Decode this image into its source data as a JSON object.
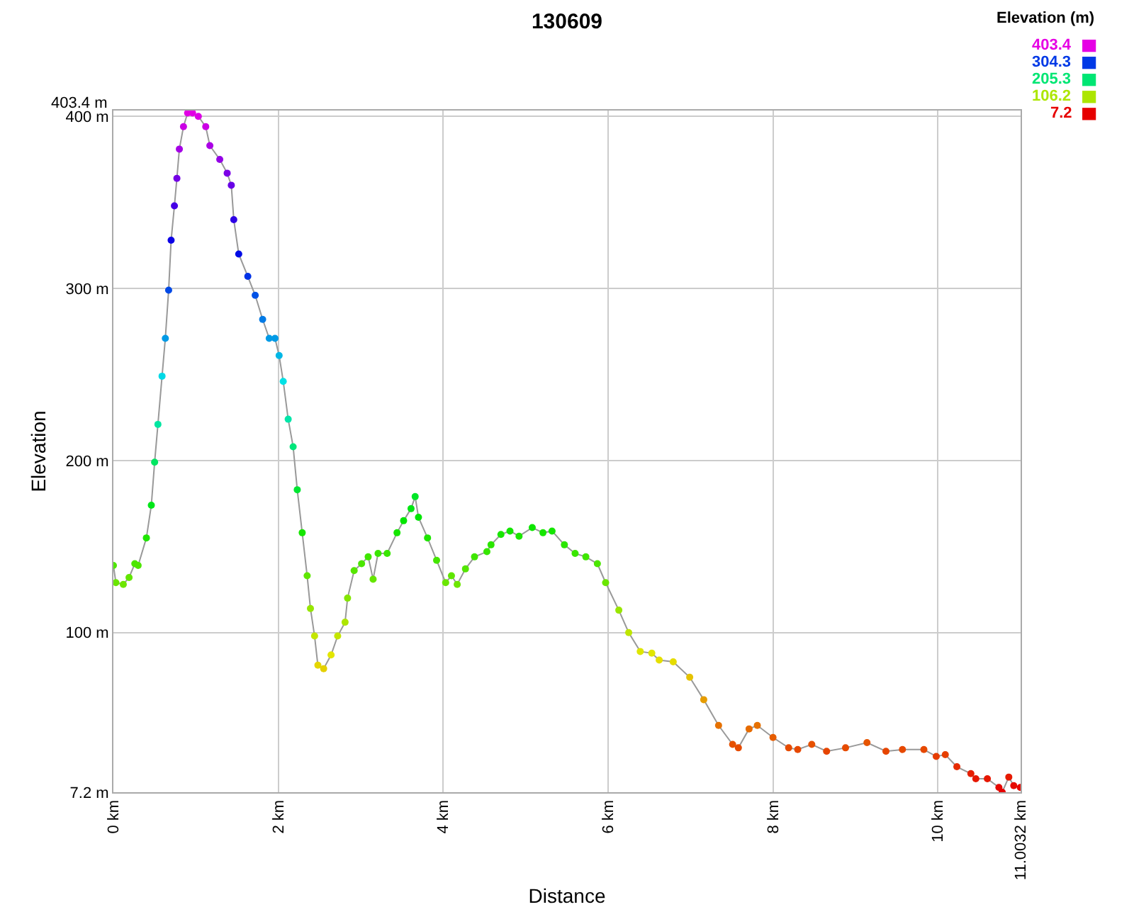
{
  "chart_data": {
    "type": "line",
    "title": "130609",
    "xlabel": "Distance",
    "ylabel": "Elevation",
    "clabel": "Elevation (m)",
    "clim": [
      7.2,
      403.4
    ],
    "cticks": [
      403.4,
      304.3,
      205.3,
      106.2,
      7.2
    ],
    "xlim": [
      0,
      11.0032
    ],
    "ylim": [
      7.2,
      403.4
    ],
    "xticks": [
      {
        "value": 0,
        "label": "0 km"
      },
      {
        "value": 2,
        "label": "2 km"
      },
      {
        "value": 4,
        "label": "4 km"
      },
      {
        "value": 6,
        "label": "6 km"
      },
      {
        "value": 8,
        "label": "8 km"
      },
      {
        "value": 10,
        "label": "10 km"
      },
      {
        "value": 11.0032,
        "label": "11.0032 km"
      }
    ],
    "yticks": [
      {
        "value": 7.2,
        "label": "7.2 m"
      },
      {
        "value": 100,
        "label": "100 m"
      },
      {
        "value": 200,
        "label": "200 m"
      },
      {
        "value": 300,
        "label": "300 m"
      },
      {
        "value": 400,
        "label": "400 m"
      },
      {
        "value": 403.4,
        "label": "403.4 m"
      }
    ],
    "grid": true,
    "marker": "circle",
    "series": [
      {
        "x": [
          0,
          0.03,
          0.12,
          0.19,
          0.26,
          0.3,
          0.4,
          0.46,
          0.5,
          0.54,
          0.59,
          0.63,
          0.67,
          0.7,
          0.74,
          0.77,
          0.8,
          0.85,
          0.9,
          0.96,
          1.03,
          1.12,
          1.17,
          1.29,
          1.38,
          1.43,
          1.46,
          1.52,
          1.63,
          1.72,
          1.81,
          1.89,
          1.96,
          2.01,
          2.06,
          2.12,
          2.18,
          2.23,
          2.29,
          2.35,
          2.39,
          2.44,
          2.48,
          2.55,
          2.64,
          2.72,
          2.81,
          2.84,
          2.92,
          3.01,
          3.09,
          3.15,
          3.21,
          3.32,
          3.44,
          3.52,
          3.61,
          3.66,
          3.7,
          3.81,
          3.92,
          4.03,
          4.1,
          4.17,
          4.27,
          4.38,
          4.53,
          4.58,
          4.7,
          4.81,
          4.92,
          5.08,
          5.21,
          5.32,
          5.47,
          5.6,
          5.73,
          5.87,
          5.97,
          6.13,
          6.25,
          6.39,
          6.53,
          6.62,
          6.79,
          6.99,
          7.16,
          7.34,
          7.51,
          7.58,
          7.71,
          7.81,
          8.0,
          8.19,
          8.3,
          8.47,
          8.65,
          8.88,
          9.14,
          9.37,
          9.57,
          9.83,
          9.98,
          10.09,
          10.23,
          10.4,
          10.46,
          10.6,
          10.74,
          10.78,
          10.86,
          10.92,
          11.0
        ],
        "values": [
          139,
          129,
          128,
          132,
          140,
          139,
          155,
          174,
          199,
          221,
          249,
          271,
          299,
          328,
          348,
          364,
          381,
          394,
          402,
          402,
          400,
          394,
          383,
          375,
          367,
          360,
          340,
          320,
          307,
          296,
          282,
          271,
          271,
          261,
          246,
          224,
          208,
          183,
          158,
          133,
          114,
          98,
          81,
          79,
          87,
          98,
          106,
          120,
          136,
          140,
          144,
          131,
          146,
          146,
          158,
          165,
          172,
          179,
          167,
          155,
          142,
          129,
          133,
          128,
          137,
          144,
          147,
          151,
          157,
          159,
          156,
          161,
          158,
          159,
          151,
          146,
          144,
          140,
          129,
          113,
          100,
          89,
          88,
          84,
          83,
          74,
          61,
          46,
          35,
          33,
          44,
          46,
          39,
          33,
          32,
          35,
          31,
          33,
          36,
          31,
          32,
          32,
          28,
          29,
          22,
          18,
          15,
          15,
          10,
          7.2,
          16,
          11,
          10
        ]
      }
    ]
  }
}
